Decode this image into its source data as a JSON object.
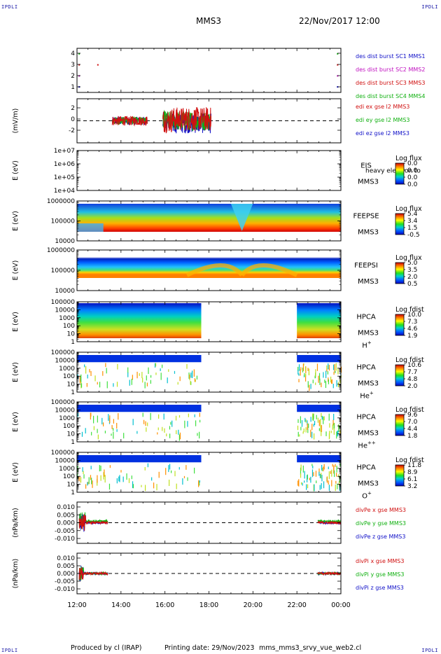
{
  "header": {
    "corner_label": "IPDLI",
    "spacecraft": "MMS3",
    "datetime": "22/Nov/2017 12:00"
  },
  "footer": {
    "produced_by": "Produced by cl (IRAP)",
    "printing_date": "Printing date: 29/Nov/2023",
    "script_name": "mms_mms3_srvy_vue_web2.cl"
  },
  "chart_data": {
    "type": "line",
    "time_axis": {
      "ticks": [
        "12:00",
        "14:00",
        "16:00",
        "18:00",
        "20:00",
        "22:00",
        "00:00"
      ],
      "range_hours": [
        12,
        24
      ]
    },
    "panels": [
      {
        "id": "des-dist-burst",
        "type": "scatter",
        "yticks": [
          "4",
          "3",
          "2",
          "1"
        ],
        "ylim": [
          0.5,
          4.5
        ],
        "series": [
          {
            "name": "des dist burst SC1 MMS1",
            "color": "#1010c8",
            "y": 1,
            "x_hours": [
              12.1,
              23.85
            ]
          },
          {
            "name": "des dist burst SC2 MMS2",
            "color": "#c010c0",
            "y": 2,
            "x_hours": [
              12.1,
              23.85
            ]
          },
          {
            "name": "des dist burst SC3 MMS3",
            "color": "#d01010",
            "y": 3,
            "x_hours": [
              12.1,
              12.95,
              23.85
            ]
          },
          {
            "name": "des dist burst SC4 MMS4",
            "color": "#10b010",
            "y": 4,
            "x_hours": [
              12.1,
              23.85
            ]
          }
        ]
      },
      {
        "id": "edi-e-field",
        "type": "line",
        "ylabel": "(mV/m)",
        "yticks": [
          "2",
          "0",
          "-2"
        ],
        "ylim": [
          -3,
          3
        ],
        "dashed_zero": true,
        "series": [
          {
            "name": "edi ex gse l2 MMS3",
            "color": "#d01010"
          },
          {
            "name": "edi ey gse l2 MMS3",
            "color": "#10b010"
          },
          {
            "name": "edi ez gse l2 MMS3",
            "color": "#1010c8"
          }
        ],
        "data_intervals_hours": [
          [
            13.6,
            15.2
          ],
          [
            15.9,
            18.1
          ]
        ]
      },
      {
        "id": "eis",
        "type": "heatmap",
        "ylabel": "E (eV)",
        "yticks": [
          "1e+07",
          "1e+06",
          "1e+05",
          "1e+04"
        ],
        "instrument": "EIS",
        "instrument_sub": "heavy electron to",
        "spacecraft": "MMS3",
        "colorbar_title": "Log flux",
        "colorbar_ticks": [
          "0.0",
          "0.0",
          "0.0",
          "0.0"
        ],
        "empty": true
      },
      {
        "id": "feepse",
        "type": "heatmap",
        "ylabel": "E (eV)",
        "yticks": [
          "1000000",
          "100000",
          "10000"
        ],
        "instrument": "FEEPSE",
        "spacecraft": "MMS3",
        "colorbar_title": "Log flux",
        "colorbar_ticks": [
          "5.4",
          "3.4",
          "1.5",
          "-0.5"
        ]
      },
      {
        "id": "feepsi",
        "type": "heatmap",
        "ylabel": "E (eV)",
        "yticks": [
          "1000000",
          "100000",
          "10000"
        ],
        "instrument": "FEEPSI",
        "spacecraft": "MMS3",
        "colorbar_title": "Log flux",
        "colorbar_ticks": [
          "5.0",
          "3.5",
          "2.0",
          "0.5"
        ]
      },
      {
        "id": "hpca-h",
        "type": "heatmap",
        "ylabel": "E (eV)",
        "yticks": [
          "100000",
          "10000",
          "1000",
          "100",
          "10",
          "1"
        ],
        "instrument": "HPCA",
        "spacecraft": "MMS3",
        "species": "H",
        "species_sup": "+",
        "colorbar_title": "Log fdist",
        "colorbar_ticks": [
          "10.0",
          "7.3",
          "4.6",
          "1.9"
        ],
        "data_intervals_hours": [
          [
            12.0,
            17.65
          ],
          [
            22.0,
            24.0
          ]
        ]
      },
      {
        "id": "hpca-he",
        "type": "heatmap",
        "ylabel": "E (eV)",
        "yticks": [
          "100000",
          "10000",
          "1000",
          "100",
          "10",
          "1"
        ],
        "instrument": "HPCA",
        "spacecraft": "MMS3",
        "species": "He",
        "species_sup": "+",
        "colorbar_title": "Log fdist",
        "colorbar_ticks": [
          "10.6",
          "7.7",
          "4.8",
          "2.0"
        ],
        "data_intervals_hours": [
          [
            12.0,
            17.65
          ],
          [
            22.0,
            24.0
          ]
        ]
      },
      {
        "id": "hpca-hepp",
        "type": "heatmap",
        "ylabel": "E (eV)",
        "yticks": [
          "100000",
          "10000",
          "1000",
          "100",
          "10",
          "1"
        ],
        "instrument": "HPCA",
        "spacecraft": "MMS3",
        "species": "He",
        "species_sup": "++",
        "colorbar_title": "Log fdist",
        "colorbar_ticks": [
          "9.6",
          "7.0",
          "4.4",
          "1.8"
        ],
        "data_intervals_hours": [
          [
            12.0,
            17.65
          ],
          [
            22.0,
            24.0
          ]
        ]
      },
      {
        "id": "hpca-o",
        "type": "heatmap",
        "ylabel": "E (eV)",
        "yticks": [
          "100000",
          "10000",
          "1000",
          "100",
          "10",
          "1"
        ],
        "instrument": "HPCA",
        "spacecraft": "MMS3",
        "species": "O",
        "species_sup": "+",
        "colorbar_title": "Log fdist",
        "colorbar_ticks": [
          "11.8",
          "8.9",
          "6.1",
          "3.2"
        ],
        "data_intervals_hours": [
          [
            12.0,
            17.65
          ],
          [
            22.0,
            24.0
          ]
        ]
      },
      {
        "id": "divpe",
        "type": "line",
        "ylabel": "(nPa/km)",
        "yticks": [
          "0.010",
          "0.005",
          "0.000",
          "-0.005",
          "-0.010"
        ],
        "ylim": [
          -0.011,
          0.011
        ],
        "dashed_zero": true,
        "series": [
          {
            "name": "divPe x gse MMS3",
            "color": "#d01010"
          },
          {
            "name": "divPe y gse MMS3",
            "color": "#10b010"
          },
          {
            "name": "divPe z gse MMS3",
            "color": "#1010c8"
          }
        ],
        "data_intervals_hours": [
          [
            12.1,
            13.4
          ],
          [
            22.95,
            24.0
          ]
        ]
      },
      {
        "id": "divpi",
        "type": "line",
        "ylabel": "(nPa/km)",
        "yticks": [
          "0.010",
          "0.005",
          "0.000",
          "-0.005",
          "-0.010"
        ],
        "ylim": [
          -0.013,
          0.013
        ],
        "dashed_zero": true,
        "series": [
          {
            "name": "divPi x gse MMS3",
            "color": "#d01010"
          },
          {
            "name": "divPi y gse MMS3",
            "color": "#10b010"
          },
          {
            "name": "divPi z gse MMS3",
            "color": "#1010c8"
          }
        ],
        "data_intervals_hours": [
          [
            12.1,
            13.4
          ],
          [
            22.95,
            24.0
          ]
        ]
      }
    ]
  }
}
